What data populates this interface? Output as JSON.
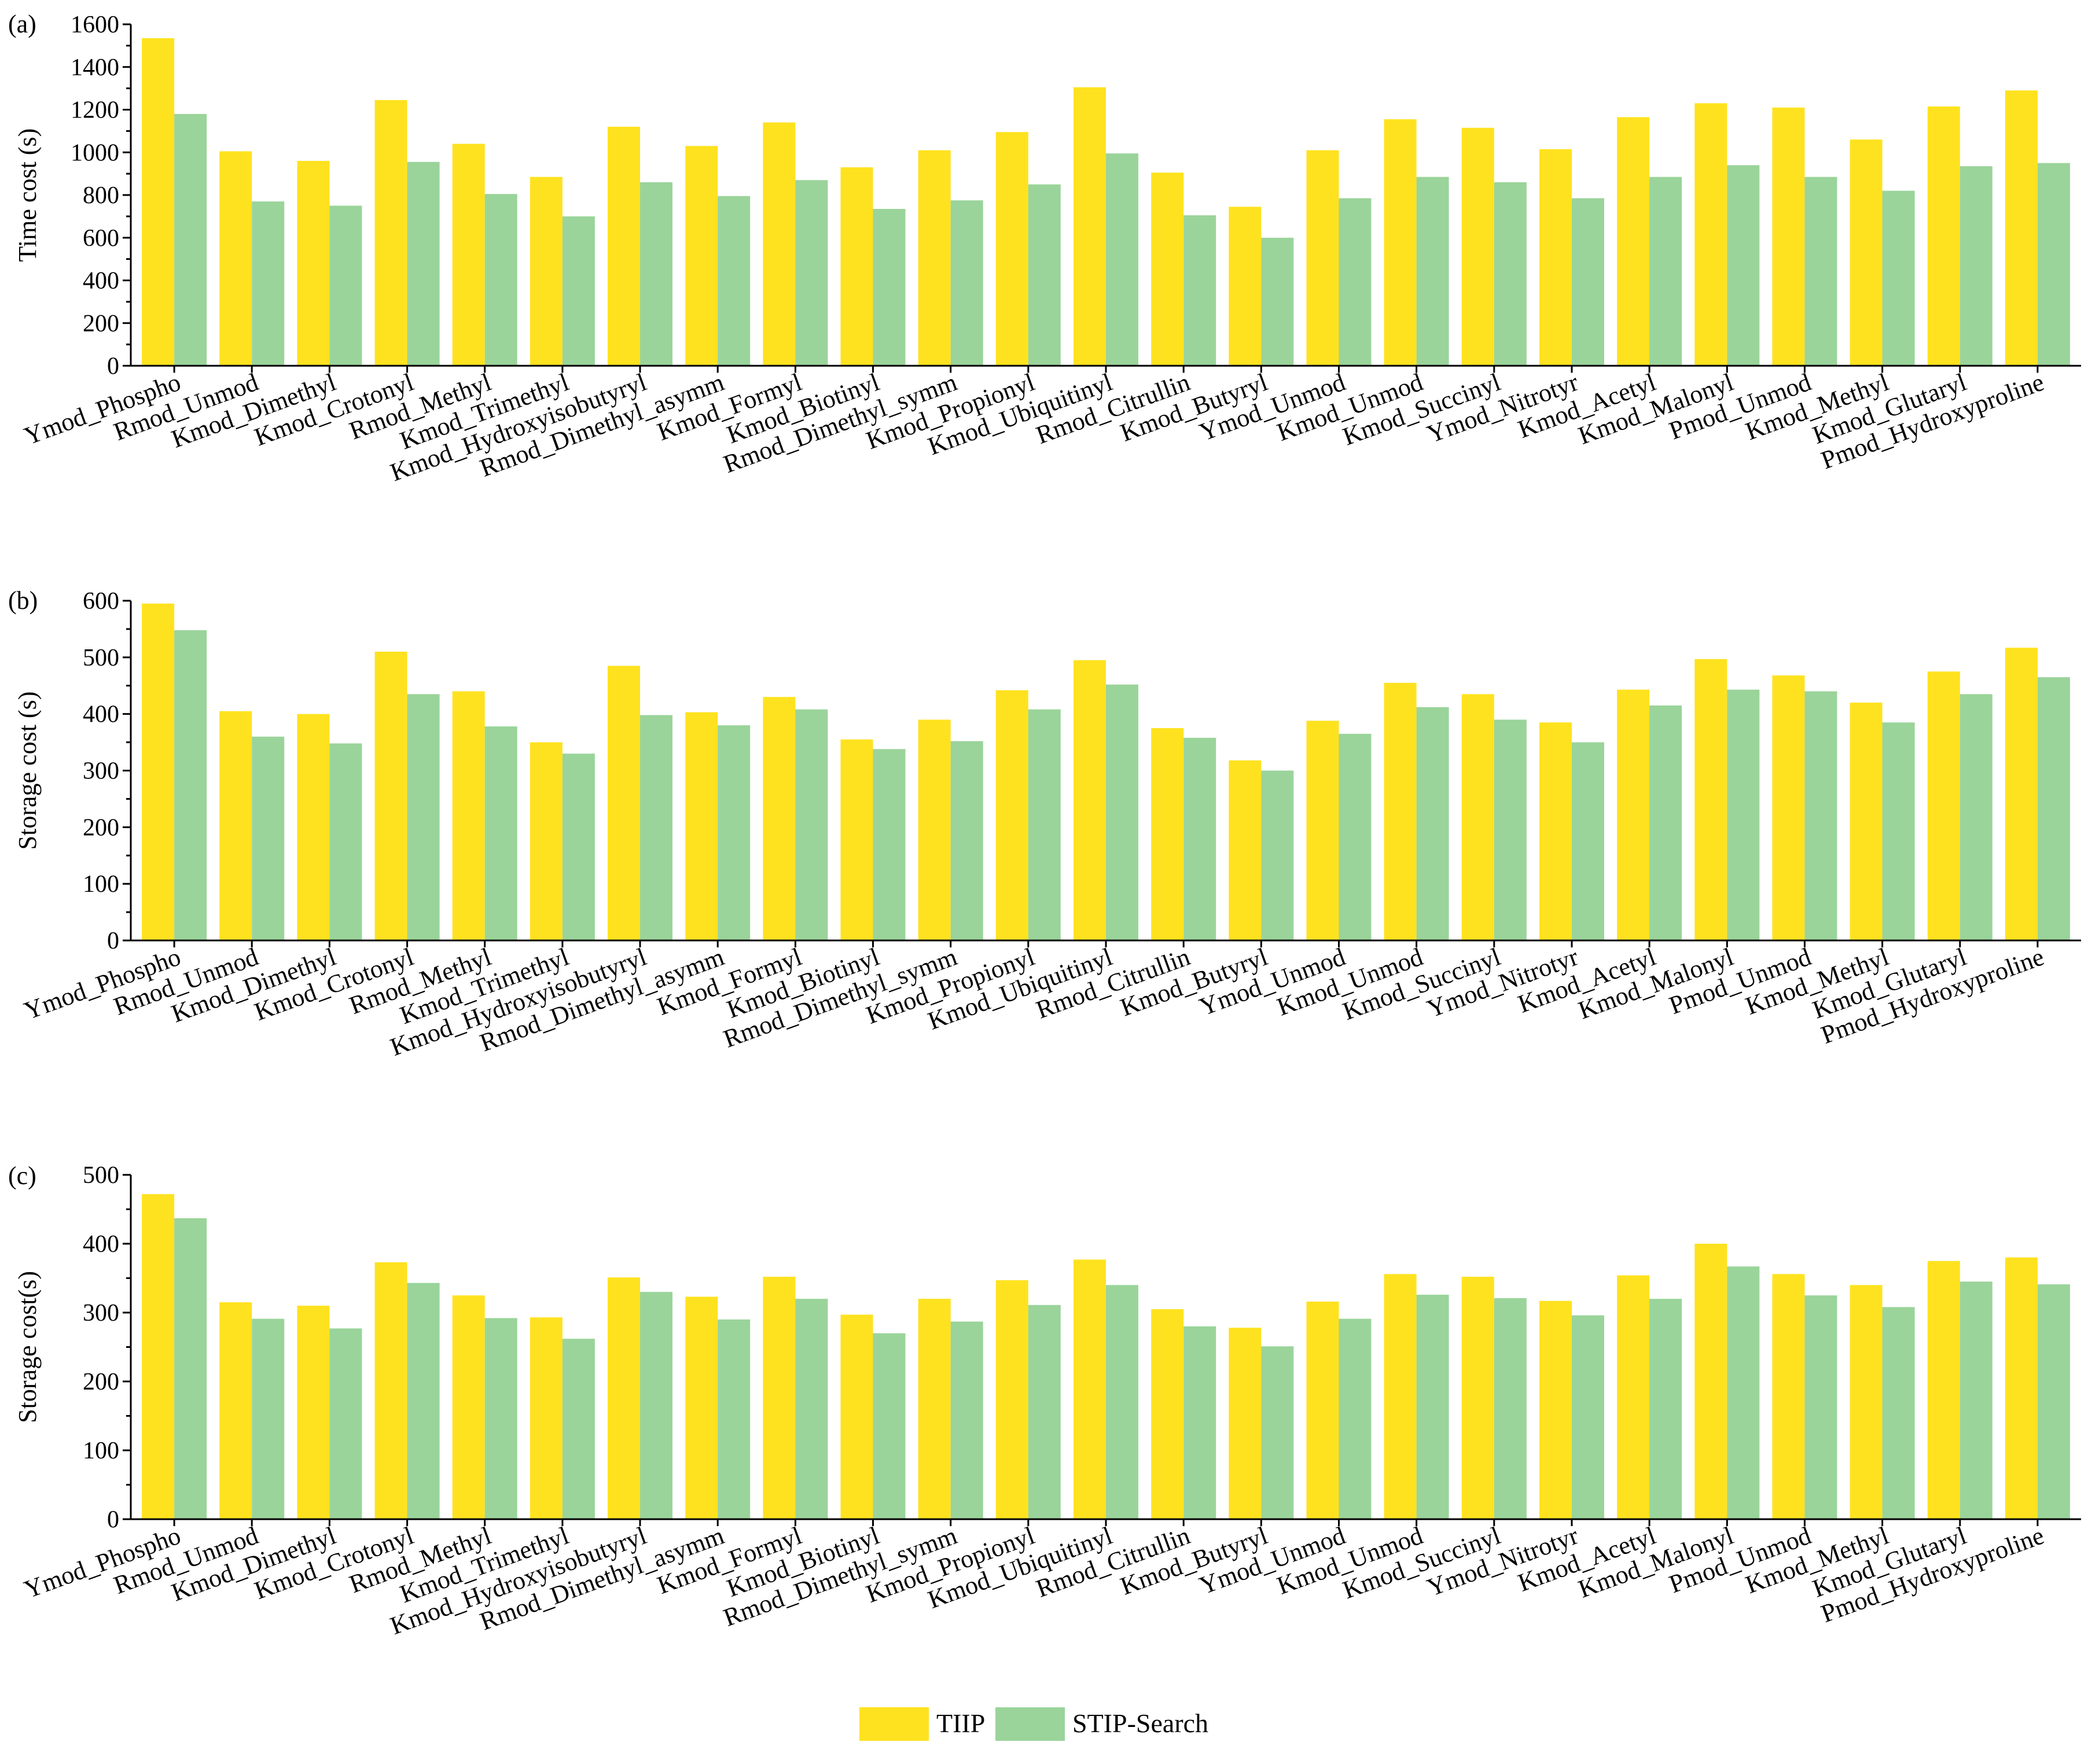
{
  "legend": {
    "series": [
      {
        "name": "TIIP",
        "color": "#ffe21f"
      },
      {
        "name": "STIP-Search",
        "color": "#9ad49a"
      }
    ]
  },
  "chart_data": [
    {
      "type": "bar",
      "panel_label": "(a)",
      "ylabel": "Time cost (s)",
      "ylim": [
        0,
        1600
      ],
      "yticks": [
        0,
        200,
        400,
        600,
        800,
        1000,
        1200,
        1400,
        1600
      ],
      "categories": [
        "Ymod_Phospho",
        "Rmod_Unmod",
        "Kmod_Dimethyl",
        "Kmod_Crotonyl",
        "Rmod_Methyl",
        "Kmod_Trimethyl",
        "Kmod_Hydroxyisobutyryl",
        "Rmod_Dimethyl_asymm",
        "Kmod_Formyl",
        "Kmod_Biotinyl",
        "Rmod_Dimethyl_symm",
        "Kmod_Propionyl",
        "Kmod_Ubiquitinyl",
        "Rmod_Citrullin",
        "Kmod_Butyryl",
        "Ymod_Unmod",
        "Kmod_Unmod",
        "Kmod_Succinyl",
        "Ymod_Nitrotyr",
        "Kmod_Acetyl",
        "Kmod_Malonyl",
        "Pmod_Unmod",
        "Kmod_Methyl",
        "Kmod_Glutaryl",
        "Pmod_Hydroxyproline"
      ],
      "series": [
        {
          "name": "TIIP",
          "values": [
            1535,
            1005,
            960,
            1245,
            1040,
            885,
            1120,
            1030,
            1140,
            930,
            1010,
            1095,
            1305,
            905,
            745,
            1010,
            1155,
            1115,
            1015,
            1165,
            1230,
            1210,
            1060,
            1215,
            1290
          ]
        },
        {
          "name": "STIP-Search",
          "values": [
            1180,
            770,
            750,
            955,
            805,
            700,
            860,
            795,
            870,
            735,
            775,
            850,
            995,
            705,
            600,
            785,
            885,
            860,
            785,
            885,
            940,
            885,
            820,
            935,
            950
          ]
        }
      ]
    },
    {
      "type": "bar",
      "panel_label": "(b)",
      "ylabel": "Storage cost (s)",
      "ylim": [
        0,
        600
      ],
      "yticks": [
        0,
        100,
        200,
        300,
        400,
        500,
        600
      ],
      "categories": [
        "Ymod_Phospho",
        "Rmod_Unmod",
        "Kmod_Dimethyl",
        "Kmod_Crotonyl",
        "Rmod_Methyl",
        "Kmod_Trimethyl",
        "Kmod_Hydroxyisobutyryl",
        "Rmod_Dimethyl_asymm",
        "Kmod_Formyl",
        "Kmod_Biotinyl",
        "Rmod_Dimethyl_symm",
        "Kmod_Propionyl",
        "Kmod_Ubiquitinyl",
        "Rmod_Citrullin",
        "Kmod_Butyryl",
        "Ymod_Unmod",
        "Kmod_Unmod",
        "Kmod_Succinyl",
        "Ymod_Nitrotyr",
        "Kmod_Acetyl",
        "Kmod_Malonyl",
        "Pmod_Unmod",
        "Kmod_Methyl",
        "Kmod_Glutaryl",
        "Pmod_Hydroxyproline"
      ],
      "series": [
        {
          "name": "TIIP",
          "values": [
            595,
            405,
            400,
            510,
            440,
            350,
            485,
            403,
            430,
            355,
            390,
            442,
            495,
            375,
            318,
            388,
            455,
            435,
            385,
            443,
            497,
            468,
            420,
            475,
            517
          ]
        },
        {
          "name": "STIP-Search",
          "values": [
            548,
            360,
            348,
            435,
            378,
            330,
            398,
            380,
            408,
            338,
            352,
            408,
            452,
            358,
            300,
            365,
            412,
            390,
            350,
            415,
            443,
            440,
            385,
            435,
            465
          ]
        }
      ]
    },
    {
      "type": "bar",
      "panel_label": "(c)",
      "ylabel": "Storage cost(s)",
      "ylim": [
        0,
        500
      ],
      "yticks": [
        0,
        100,
        200,
        300,
        400,
        500
      ],
      "categories": [
        "Ymod_Phospho",
        "Rmod_Unmod",
        "Kmod_Dimethyl",
        "Kmod_Crotonyl",
        "Rmod_Methyl",
        "Kmod_Trimethyl",
        "Kmod_Hydroxyisobutyryl",
        "Rmod_Dimethyl_asymm",
        "Kmod_Formyl",
        "Kmod_Biotinyl",
        "Rmod_Dimethyl_symm",
        "Kmod_Propionyl",
        "Kmod_Ubiquitinyl",
        "Rmod_Citrullin",
        "Kmod_Butyryl",
        "Ymod_Unmod",
        "Kmod_Unmod",
        "Kmod_Succinyl",
        "Ymod_Nitrotyr",
        "Kmod_Acetyl",
        "Kmod_Malonyl",
        "Pmod_Unmod",
        "Kmod_Methyl",
        "Kmod_Glutaryl",
        "Pmod_Hydroxyproline"
      ],
      "series": [
        {
          "name": "TIIP",
          "values": [
            472,
            315,
            310,
            373,
            325,
            293,
            351,
            323,
            352,
            297,
            320,
            347,
            377,
            305,
            278,
            316,
            356,
            352,
            317,
            354,
            400,
            356,
            340,
            375,
            380
          ]
        },
        {
          "name": "STIP-Search",
          "values": [
            437,
            291,
            277,
            343,
            292,
            262,
            330,
            290,
            320,
            270,
            287,
            311,
            340,
            280,
            251,
            291,
            326,
            321,
            296,
            320,
            367,
            325,
            308,
            345,
            341
          ]
        }
      ]
    }
  ]
}
